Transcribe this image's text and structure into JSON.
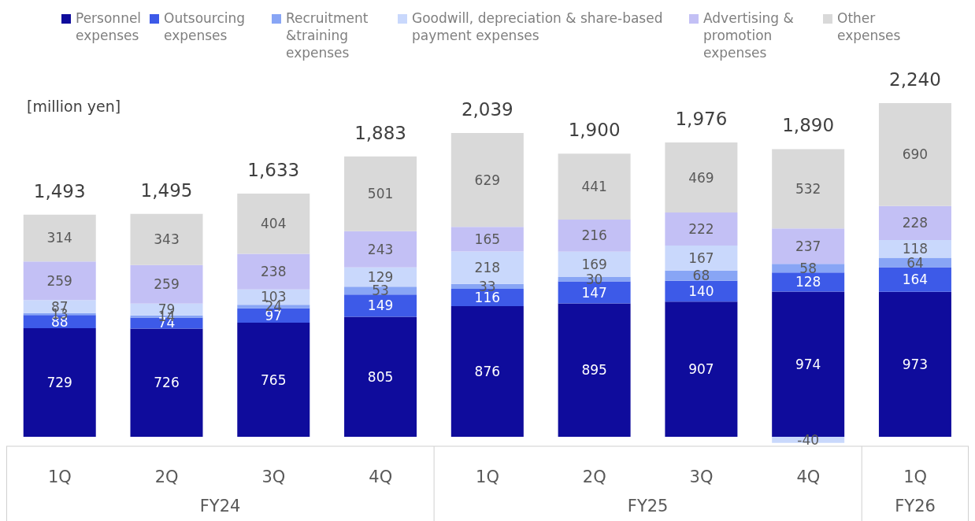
{
  "chart_data": {
    "type": "bar",
    "stacked": true,
    "data_labels": true,
    "legend": "top",
    "grid": false,
    "ylabel": "[million yen]",
    "categories": [
      "1Q",
      "2Q",
      "3Q",
      "4Q",
      "1Q",
      "2Q",
      "3Q",
      "4Q",
      "1Q"
    ],
    "annotations": [
      "FY24",
      "FY25",
      "FY26"
    ],
    "totals": [
      "1,493",
      "1,495",
      "1,633",
      "1,883",
      "2,039",
      "1,900",
      "1,976",
      "1,890",
      "2,240"
    ],
    "series": [
      {
        "name": "Personnel expenses",
        "color": "#0f0c9c",
        "values": [
          729,
          726,
          765,
          805,
          876,
          895,
          907,
          974,
          973
        ]
      },
      {
        "name": "Outsourcing expenses",
        "color": "#3d5ae8",
        "values": [
          88,
          74,
          97,
          149,
          116,
          147,
          140,
          128,
          164
        ]
      },
      {
        "name": "Recruitment &training expenses",
        "color": "#88a5f5",
        "values": [
          13,
          14,
          24,
          53,
          33,
          30,
          68,
          58,
          64
        ]
      },
      {
        "name": "Goodwill, depreciation & share-based payment expenses",
        "color": "#c9d8fc",
        "values": [
          87,
          79,
          103,
          129,
          218,
          169,
          167,
          -40,
          118
        ]
      },
      {
        "name": "Advertising & promotion expenses",
        "color": "#c3c0f5",
        "values": [
          259,
          259,
          238,
          243,
          165,
          216,
          222,
          237,
          228
        ]
      },
      {
        "name": "Other expenses",
        "color": "#d9d9d9",
        "values": [
          314,
          343,
          404,
          501,
          629,
          441,
          469,
          532,
          690
        ]
      }
    ]
  }
}
